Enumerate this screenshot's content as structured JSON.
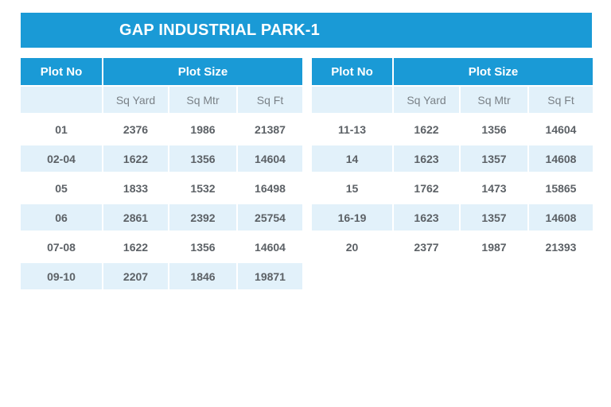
{
  "title": "GAP INDUSTRIAL PARK-1",
  "headers": {
    "plot_no": "Plot No",
    "plot_size": "Plot Size",
    "sq_yard": "Sq Yard",
    "sq_mtr": "Sq Mtr",
    "sq_ft": "Sq Ft"
  },
  "left_rows": [
    {
      "plot": "01",
      "yard": "2376",
      "mtr": "1986",
      "ft": "21387"
    },
    {
      "plot": "02-04",
      "yard": "1622",
      "mtr": "1356",
      "ft": "14604"
    },
    {
      "plot": "05",
      "yard": "1833",
      "mtr": "1532",
      "ft": "16498"
    },
    {
      "plot": "06",
      "yard": "2861",
      "mtr": "2392",
      "ft": "25754"
    },
    {
      "plot": "07-08",
      "yard": "1622",
      "mtr": "1356",
      "ft": "14604"
    },
    {
      "plot": "09-10",
      "yard": "2207",
      "mtr": "1846",
      "ft": "19871"
    }
  ],
  "right_rows": [
    {
      "plot": "11-13",
      "yard": "1622",
      "mtr": "1356",
      "ft": "14604"
    },
    {
      "plot": "14",
      "yard": "1623",
      "mtr": "1357",
      "ft": "14608"
    },
    {
      "plot": "15",
      "yard": "1762",
      "mtr": "1473",
      "ft": "15865"
    },
    {
      "plot": "16-19",
      "yard": "1623",
      "mtr": "1357",
      "ft": "14608"
    },
    {
      "plot": "20",
      "yard": "2377",
      "mtr": "1987",
      "ft": "21393"
    }
  ],
  "colors": {
    "accent": "#1a9ad6",
    "alt_row": "#e2f1fa",
    "text": "#5c6166"
  }
}
